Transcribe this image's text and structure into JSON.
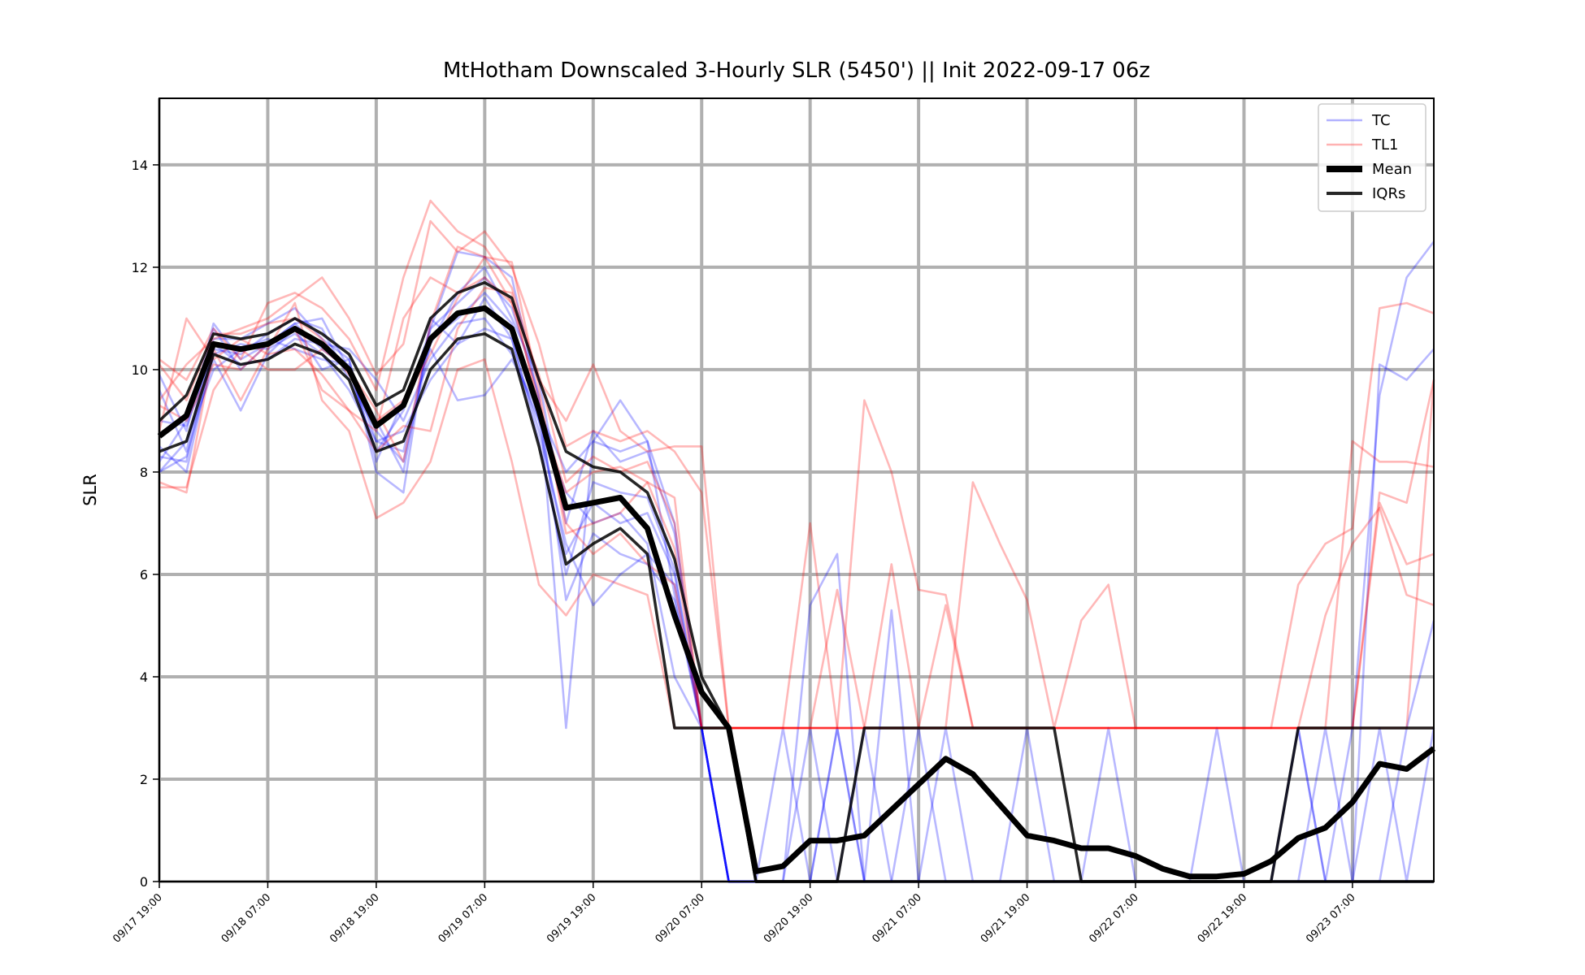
{
  "chart_data": {
    "type": "line",
    "title": "MtHotham Downscaled 3-Hourly SLR (5450') || Init 2022-09-17 06z",
    "ylabel": "SLR",
    "xlabel": "",
    "ylim": [
      0,
      15.3
    ],
    "xlim": [
      0,
      47
    ],
    "yticks": [
      0,
      2,
      4,
      6,
      8,
      10,
      12,
      14
    ],
    "xtick_labels": [
      "09/17 19:00",
      "09/18 07:00",
      "09/18 19:00",
      "09/19 07:00",
      "09/19 19:00",
      "09/20 07:00",
      "09/20 19:00",
      "09/21 07:00",
      "09/21 19:00",
      "09/22 07:00",
      "09/22 19:00",
      "09/23 07:00"
    ],
    "x_step_hours": 3,
    "grid": true,
    "legend_position": "top-right",
    "legend": [
      {
        "label": "TC",
        "color": "#0000ff",
        "style": "thin-transparent"
      },
      {
        "label": "TL1",
        "color": "#ff0000",
        "style": "thin-transparent"
      },
      {
        "label": "Mean",
        "color": "#000000",
        "style": "thick"
      },
      {
        "label": "IQRs",
        "color": "#000000",
        "style": "medium"
      }
    ],
    "colors": {
      "TC": "#0000ff",
      "TL1": "#ff0000",
      "Mean": "#000000",
      "IQRs": "#000000",
      "grid": "#b0b0b0"
    },
    "series": [
      {
        "name": "Mean",
        "values": [
          8.7,
          9.1,
          10.5,
          10.4,
          10.5,
          10.8,
          10.5,
          10.0,
          8.9,
          9.3,
          10.6,
          11.1,
          11.2,
          10.8,
          9.2,
          7.3,
          7.4,
          7.5,
          6.9,
          5.2,
          3.7,
          3.0,
          0.2,
          0.3,
          0.8,
          0.8,
          0.9,
          1.4,
          1.9,
          2.4,
          2.1,
          1.5,
          0.9,
          0.8,
          0.65,
          0.65,
          0.5,
          0.25,
          0.1,
          0.1,
          0.15,
          0.4,
          0.85,
          1.05,
          1.55,
          2.3,
          2.2,
          2.6
        ]
      },
      {
        "name": "IQRs",
        "values": [
          9.0,
          9.5,
          10.7,
          10.6,
          10.7,
          11.0,
          10.7,
          10.3,
          9.3,
          9.6,
          11.0,
          11.5,
          11.7,
          11.4,
          9.8,
          8.4,
          8.1,
          8.0,
          7.6,
          6.3,
          4.0,
          3.0,
          0,
          0,
          0,
          0,
          3.0,
          3.0,
          3.0,
          3.0,
          3.0,
          3.0,
          3.0,
          3.0,
          0,
          0,
          0,
          0,
          0,
          0,
          0,
          0,
          3.0,
          3.0,
          3.0,
          3.0,
          3.0,
          3.0
        ]
      },
      {
        "name": "IQRs",
        "values": [
          8.4,
          8.6,
          10.3,
          10.1,
          10.2,
          10.5,
          10.3,
          9.8,
          8.4,
          8.6,
          10.0,
          10.6,
          10.7,
          10.4,
          8.5,
          6.2,
          6.6,
          6.9,
          6.4,
          3.0,
          3.0,
          3.0,
          0,
          0,
          0,
          0,
          0,
          0,
          0,
          0,
          0,
          0,
          0,
          0,
          0,
          0,
          0,
          0,
          0,
          0,
          0,
          0,
          0,
          0,
          0,
          0,
          0,
          0
        ]
      }
    ],
    "members_TC": [
      [
        9.9,
        8.8,
        10.9,
        10.2,
        10.5,
        10.9,
        10.4,
        10.0,
        8.4,
        9.2,
        10.8,
        11.3,
        11.8,
        11.2,
        9.5,
        3.0,
        8.6,
        9.4,
        8.6,
        5.6,
        3.0,
        0,
        0,
        3.0,
        0,
        0,
        3.0,
        0,
        0,
        3.0,
        0,
        0,
        3.0,
        0,
        0,
        3.0,
        0,
        0,
        0,
        3.0,
        0,
        0,
        3.0,
        0,
        0,
        3.0,
        0,
        3.0
      ],
      [
        8.0,
        8.3,
        10.2,
        9.2,
        10.3,
        10.8,
        10.0,
        10.2,
        8.0,
        7.6,
        11.0,
        10.5,
        11.4,
        10.6,
        8.6,
        6.0,
        7.8,
        7.6,
        7.5,
        6.1,
        3.0,
        0,
        0,
        0,
        3.0,
        0,
        0,
        0,
        0,
        0,
        0,
        0,
        0,
        0,
        0,
        0,
        0,
        0,
        0,
        0,
        0,
        0,
        3.0,
        0,
        0,
        0,
        0,
        0
      ],
      [
        8.5,
        8.0,
        10.4,
        10.3,
        10.7,
        11.0,
        10.8,
        9.8,
        8.8,
        8.2,
        10.5,
        11.5,
        12.0,
        11.0,
        9.8,
        7.0,
        8.8,
        8.2,
        8.4,
        6.8,
        3.0,
        0,
        0,
        0,
        0,
        3.0,
        0,
        0,
        0,
        0,
        0,
        0,
        0,
        0,
        0,
        0,
        0,
        0,
        0,
        0,
        0,
        0,
        0,
        0,
        0,
        0,
        0,
        0
      ],
      [
        8.2,
        9.0,
        10.5,
        10.1,
        10.2,
        10.6,
        10.5,
        10.4,
        9.8,
        9.0,
        10.2,
        10.9,
        11.0,
        10.3,
        9.0,
        6.4,
        7.4,
        7.0,
        7.2,
        6.0,
        3.0,
        0,
        0,
        0,
        0,
        3.0,
        0,
        0,
        3.0,
        0,
        0,
        0,
        0,
        0,
        0,
        0,
        0,
        0,
        0,
        0,
        0,
        0,
        0,
        0,
        0,
        0,
        0,
        0
      ],
      [
        9.6,
        8.4,
        10.8,
        10.0,
        10.5,
        10.9,
        11.0,
        10.0,
        9.0,
        8.0,
        10.8,
        12.3,
        12.2,
        11.8,
        9.4,
        5.5,
        6.8,
        6.4,
        6.2,
        5.5,
        3.0,
        0,
        0,
        0,
        0,
        0,
        0,
        5.3,
        0,
        0,
        0,
        0,
        0,
        0,
        0,
        0,
        0,
        0,
        0,
        0,
        0,
        0,
        0,
        0,
        0,
        0,
        0,
        0
      ],
      [
        8.0,
        8.6,
        10.0,
        10.4,
        10.6,
        10.4,
        10.2,
        10.1,
        8.6,
        8.8,
        9.8,
        10.5,
        10.8,
        10.6,
        8.8,
        6.6,
        5.4,
        6.0,
        6.4,
        5.8,
        3.0,
        0,
        0,
        0,
        5.4,
        6.4,
        0,
        0,
        0,
        0,
        0,
        0,
        0,
        0,
        0,
        0,
        0,
        0,
        0,
        0,
        0,
        0,
        0,
        3.0,
        0,
        10.1,
        9.8,
        10.4
      ],
      [
        8.3,
        8.2,
        10.6,
        10.6,
        10.9,
        11.2,
        10.6,
        10.2,
        8.2,
        9.4,
        10.4,
        9.4,
        9.5,
        10.2,
        9.2,
        8.0,
        8.6,
        8.4,
        8.6,
        7.0,
        3.0,
        0,
        0,
        0,
        0,
        0,
        0,
        0,
        0,
        0,
        0,
        0,
        0,
        0,
        0,
        0,
        0,
        0,
        0,
        0,
        0,
        0,
        0,
        0,
        3.0,
        9.5,
        11.8,
        12.5
      ],
      [
        9.0,
        8.9,
        10.3,
        10.5,
        10.4,
        10.7,
        10.3,
        9.6,
        8.6,
        8.4,
        10.6,
        11.0,
        11.5,
        10.9,
        9.0,
        7.6,
        7.0,
        7.2,
        6.6,
        4.0,
        3.0,
        0,
        0,
        0,
        0,
        0,
        0,
        0,
        0,
        0,
        0,
        0,
        0,
        0,
        0,
        0,
        0,
        0,
        0,
        0,
        0,
        0,
        0,
        0,
        0,
        0,
        3.0,
        5.1
      ]
    ],
    "members_TL1": [
      [
        10.2,
        9.8,
        10.8,
        10.2,
        11.3,
        11.5,
        11.2,
        10.6,
        9.6,
        11.8,
        13.3,
        12.7,
        12.4,
        11.6,
        9.8,
        9.0,
        10.1,
        8.8,
        8.4,
        8.5,
        8.5,
        3.0,
        3.0,
        3.0,
        3.0,
        3.0,
        9.4,
        8.0,
        5.7,
        5.6,
        3.0,
        3.0,
        3.0,
        3.0,
        3.0,
        3.0,
        3.0,
        3.0,
        3.0,
        3.0,
        3.0,
        3.0,
        5.8,
        6.6,
        6.9,
        11.2,
        11.3,
        11.1
      ],
      [
        9.4,
        10.1,
        10.6,
        10.8,
        11.0,
        11.4,
        11.8,
        11.0,
        9.9,
        10.5,
        12.9,
        12.3,
        12.7,
        12.0,
        10.5,
        8.5,
        8.8,
        8.6,
        8.8,
        8.4,
        7.6,
        3.0,
        3.0,
        3.0,
        3.0,
        3.0,
        3.0,
        6.2,
        3.0,
        3.0,
        3.0,
        3.0,
        3.0,
        3.0,
        3.0,
        3.0,
        3.0,
        3.0,
        3.0,
        3.0,
        3.0,
        3.0,
        3.0,
        3.0,
        8.6,
        8.2,
        8.2,
        8.1
      ],
      [
        7.8,
        7.6,
        10.4,
        9.4,
        10.4,
        11.3,
        9.4,
        8.8,
        7.1,
        7.4,
        8.2,
        10.0,
        10.2,
        8.2,
        5.8,
        5.2,
        6.0,
        5.8,
        5.6,
        3.0,
        3.0,
        3.0,
        3.0,
        3.0,
        7.0,
        3.0,
        3.0,
        3.0,
        3.0,
        3.0,
        7.8,
        6.6,
        5.5,
        3.0,
        5.1,
        5.8,
        3.0,
        3.0,
        3.0,
        3.0,
        3.0,
        3.0,
        3.0,
        3.0,
        3.0,
        7.4,
        6.2,
        6.4
      ],
      [
        8.8,
        11.0,
        10.2,
        10.6,
        10.3,
        10.4,
        9.9,
        9.2,
        8.8,
        11.0,
        11.8,
        11.5,
        11.8,
        11.3,
        9.9,
        7.8,
        8.3,
        8.0,
        8.2,
        7.0,
        3.0,
        3.0,
        3.0,
        3.0,
        3.0,
        5.7,
        3.0,
        3.0,
        3.0,
        5.4,
        3.0,
        3.0,
        3.0,
        3.0,
        3.0,
        3.0,
        3.0,
        3.0,
        3.0,
        3.0,
        3.0,
        3.0,
        3.0,
        5.2,
        6.6,
        7.3,
        5.6,
        5.4
      ],
      [
        7.7,
        7.7,
        9.6,
        10.4,
        10.0,
        10.0,
        10.4,
        10.0,
        9.2,
        8.2,
        10.9,
        12.4,
        12.2,
        12.1,
        9.6,
        6.8,
        7.0,
        7.2,
        7.8,
        7.5,
        3.0,
        3.0,
        3.0,
        3.0,
        3.0,
        3.0,
        3.0,
        3.0,
        3.0,
        3.0,
        3.0,
        3.0,
        3.0,
        3.0,
        3.0,
        3.0,
        3.0,
        3.0,
        3.0,
        3.0,
        3.0,
        3.0,
        3.0,
        3.0,
        3.0,
        7.6,
        7.4,
        9.8
      ],
      [
        10.1,
        9.4,
        10.7,
        10.7,
        10.9,
        11.0,
        10.6,
        9.9,
        9.0,
        9.4,
        10.3,
        11.4,
        12.2,
        11.3,
        9.4,
        7.0,
        6.4,
        6.8,
        6.2,
        5.8,
        3.0,
        3.0,
        3.0,
        3.0,
        3.0,
        3.0,
        3.0,
        3.0,
        3.0,
        3.0,
        3.0,
        3.0,
        3.0,
        3.0,
        3.0,
        3.0,
        3.0,
        3.0,
        3.0,
        3.0,
        3.0,
        3.0,
        3.0,
        3.0,
        3.0,
        3.0,
        3.0,
        9.8
      ],
      [
        9.3,
        9.0,
        10.1,
        10.0,
        10.5,
        10.8,
        9.6,
        9.2,
        8.4,
        8.9,
        8.8,
        10.8,
        11.6,
        11.5,
        9.2,
        7.6,
        8.0,
        8.1,
        7.8,
        6.5,
        3.0,
        3.0,
        3.0,
        3.0,
        3.0,
        3.0,
        3.0,
        3.0,
        3.0,
        3.0,
        3.0,
        3.0,
        3.0,
        3.0,
        3.0,
        3.0,
        3.0,
        3.0,
        3.0,
        3.0,
        3.0,
        3.0,
        3.0,
        3.0,
        3.0,
        3.0,
        3.0,
        3.0
      ]
    ]
  }
}
